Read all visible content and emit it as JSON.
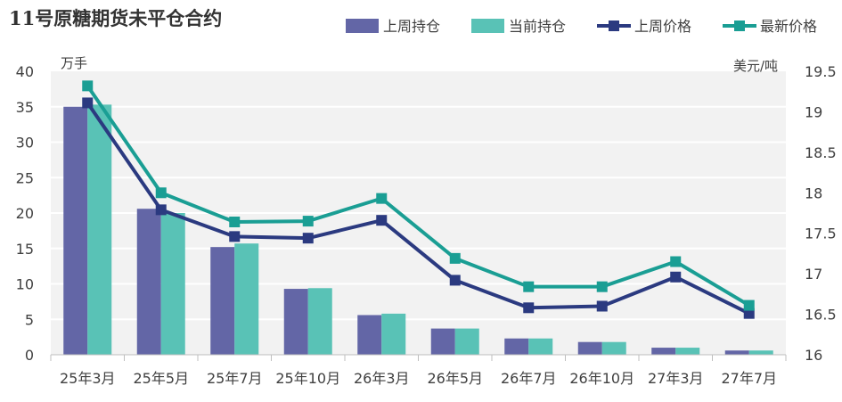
{
  "chart_data": {
    "type": "bar+line",
    "title": "11号原糖期货未平仓合约",
    "y_left_unit": "万手",
    "y_right_unit": "美元/吨",
    "y_left_lim": [
      0,
      40
    ],
    "y_left_ticks": [
      "0",
      "5",
      "10",
      "15",
      "20",
      "25",
      "30",
      "35",
      "40"
    ],
    "y_right_lim": [
      16,
      19.5
    ],
    "y_right_ticks": [
      "16",
      "16.5",
      "17",
      "17.5",
      "18",
      "18.5",
      "19",
      "19.5"
    ],
    "categories": [
      "25年3月",
      "25年5月",
      "25年7月",
      "25年10月",
      "26年3月",
      "26年5月",
      "26年7月",
      "26年10月",
      "27年3月",
      "27年7月"
    ],
    "grid": true,
    "legend_position": "top-right",
    "series": [
      {
        "name": "上周持仓",
        "type": "bar",
        "axis": "left",
        "color": "#6366a6",
        "values": [
          35.0,
          20.6,
          15.2,
          9.3,
          5.6,
          3.7,
          2.3,
          1.8,
          1.0,
          0.6
        ]
      },
      {
        "name": "当前持仓",
        "type": "bar",
        "axis": "left",
        "color": "#59c2b6",
        "values": [
          35.3,
          20.0,
          15.7,
          9.4,
          5.8,
          3.7,
          2.3,
          1.8,
          1.0,
          0.6
        ]
      },
      {
        "name": "上周价格",
        "type": "line",
        "axis": "right",
        "color": "#2b3a80",
        "values": [
          19.11,
          17.79,
          17.46,
          17.44,
          17.66,
          16.92,
          16.58,
          16.6,
          16.96,
          16.51
        ]
      },
      {
        "name": "最新价格",
        "type": "line",
        "axis": "right",
        "color": "#1a9e94",
        "values": [
          19.32,
          18.0,
          17.64,
          17.65,
          17.93,
          17.19,
          16.84,
          16.84,
          17.15,
          16.61
        ]
      }
    ]
  }
}
